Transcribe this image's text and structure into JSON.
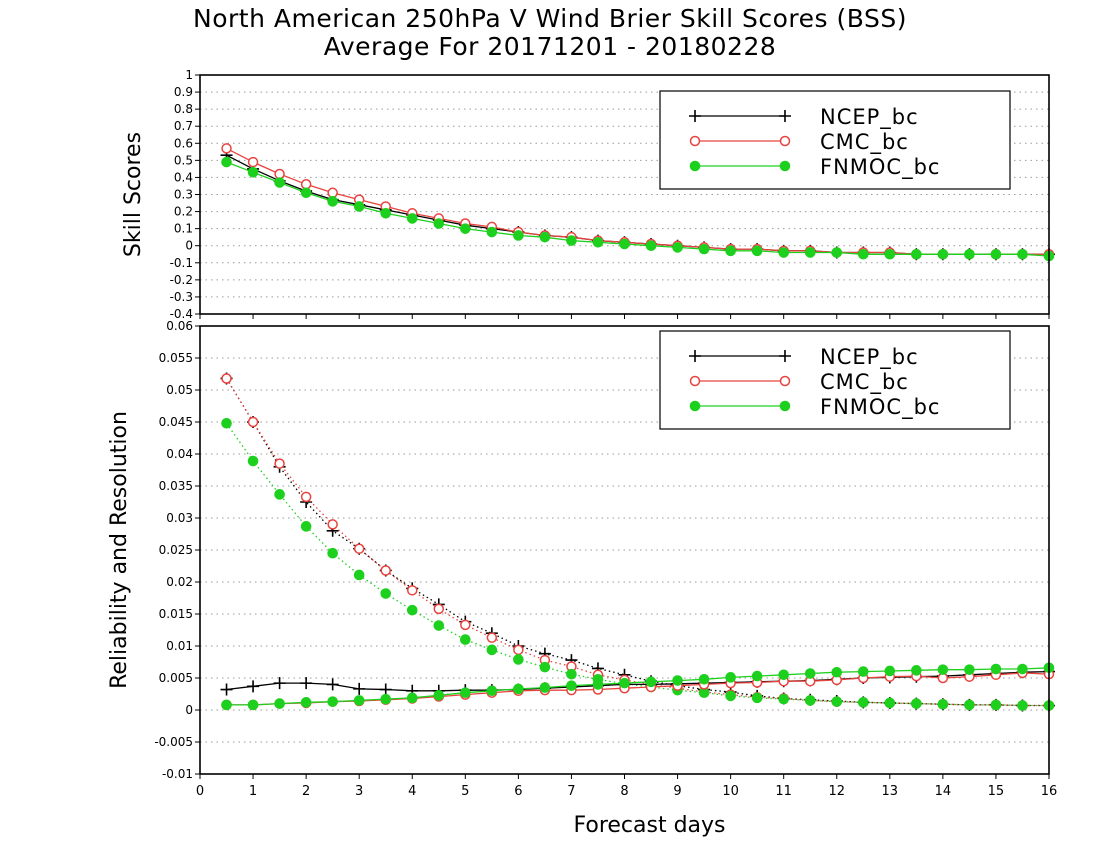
{
  "title": {
    "line1": "North American 250hPa V Wind Brier Skill Scores (BSS)",
    "line2": "Average For 20171201 - 20180228"
  },
  "colors": {
    "NCEP_bc": "#000000",
    "CMC_bc": "#e8433f",
    "FNMOC_bc": "#1ed01e"
  },
  "chart_data": [
    {
      "type": "line",
      "ylabel": "Skill Scores",
      "xlabel": "",
      "xlim": [
        0,
        16
      ],
      "ylim": [
        -0.4,
        1
      ],
      "grid": true,
      "legend_position": "top-right",
      "x_ticks": [],
      "y_ticks": [
        "-0.4",
        "-0.3",
        "-0.2",
        "-0.1",
        "0",
        "0.1",
        "0.2",
        "0.3",
        "0.4",
        "0.5",
        "0.6",
        "0.7",
        "0.8",
        "0.9",
        "1"
      ],
      "x": [
        0.5,
        1,
        1.5,
        2,
        2.5,
        3,
        3.5,
        4,
        4.5,
        5,
        5.5,
        6,
        6.5,
        7,
        7.5,
        8,
        8.5,
        9,
        9.5,
        10,
        10.5,
        11,
        11.5,
        12,
        12.5,
        13,
        13.5,
        14,
        14.5,
        15,
        15.5,
        16
      ],
      "series": [
        {
          "name": "NCEP_bc",
          "marker": "plus",
          "line": "solid",
          "values": [
            0.53,
            0.45,
            0.38,
            0.32,
            0.27,
            0.24,
            0.21,
            0.18,
            0.15,
            0.12,
            0.1,
            0.08,
            0.06,
            0.05,
            0.03,
            0.02,
            0.01,
            0.0,
            -0.01,
            -0.02,
            -0.02,
            -0.03,
            -0.03,
            -0.04,
            -0.04,
            -0.04,
            -0.05,
            -0.05,
            -0.05,
            -0.05,
            -0.05,
            -0.05
          ]
        },
        {
          "name": "CMC_bc",
          "marker": "open-circle",
          "line": "solid",
          "values": [
            0.57,
            0.49,
            0.42,
            0.36,
            0.31,
            0.27,
            0.23,
            0.19,
            0.16,
            0.13,
            0.11,
            0.08,
            0.06,
            0.05,
            0.03,
            0.02,
            0.01,
            0.0,
            -0.01,
            -0.02,
            -0.02,
            -0.03,
            -0.03,
            -0.04,
            -0.04,
            -0.04,
            -0.05,
            -0.05,
            -0.05,
            -0.05,
            -0.05,
            -0.05
          ]
        },
        {
          "name": "FNMOC_bc",
          "marker": "filled-circle",
          "line": "solid",
          "values": [
            0.49,
            0.43,
            0.37,
            0.31,
            0.26,
            0.23,
            0.19,
            0.16,
            0.13,
            0.1,
            0.08,
            0.06,
            0.05,
            0.03,
            0.02,
            0.01,
            0.0,
            -0.01,
            -0.02,
            -0.03,
            -0.03,
            -0.04,
            -0.04,
            -0.04,
            -0.05,
            -0.05,
            -0.05,
            -0.05,
            -0.05,
            -0.05,
            -0.05,
            -0.06
          ]
        }
      ]
    },
    {
      "type": "line",
      "ylabel": "Reliability and Resolution",
      "xlabel": "Forecast days",
      "xlim": [
        0,
        16
      ],
      "ylim": [
        -0.01,
        0.06
      ],
      "grid": true,
      "legend_position": "top-right",
      "x_ticks": [
        "0",
        "1",
        "2",
        "3",
        "4",
        "5",
        "6",
        "7",
        "8",
        "9",
        "10",
        "11",
        "12",
        "13",
        "14",
        "15",
        "16"
      ],
      "y_ticks": [
        "-0.01",
        "-0.005",
        "0",
        "0.005",
        "0.01",
        "0.015",
        "0.02",
        "0.025",
        "0.03",
        "0.035",
        "0.04",
        "0.045",
        "0.05",
        "0.055",
        "0.06"
      ],
      "x": [
        0.5,
        1,
        1.5,
        2,
        2.5,
        3,
        3.5,
        4,
        4.5,
        5,
        5.5,
        6,
        6.5,
        7,
        7.5,
        8,
        8.5,
        9,
        9.5,
        10,
        10.5,
        11,
        11.5,
        12,
        12.5,
        13,
        13.5,
        14,
        14.5,
        15,
        15.5,
        16
      ],
      "series": [
        {
          "name": "NCEP_bc",
          "metric": "resolution",
          "marker": "plus",
          "line": "dotted",
          "values": [
            0.0518,
            0.045,
            0.038,
            0.0325,
            0.028,
            0.0252,
            0.0218,
            0.019,
            0.0165,
            0.0138,
            0.012,
            0.01,
            0.0088,
            0.0078,
            0.0065,
            0.0055,
            0.0045,
            0.0038,
            0.0032,
            0.0028,
            0.0022,
            0.0018,
            0.0016,
            0.0014,
            0.0012,
            0.0011,
            0.001,
            0.0009,
            0.0008,
            0.0008,
            0.0007,
            0.0007
          ]
        },
        {
          "name": "CMC_bc",
          "metric": "resolution",
          "marker": "open-circle",
          "line": "dotted",
          "values": [
            0.0518,
            0.045,
            0.0385,
            0.0333,
            0.029,
            0.0252,
            0.0218,
            0.0187,
            0.0158,
            0.0133,
            0.0113,
            0.0094,
            0.0078,
            0.0068,
            0.0055,
            0.0047,
            0.004,
            0.0034,
            0.0028,
            0.0024,
            0.002,
            0.0018,
            0.0015,
            0.0013,
            0.0012,
            0.0011,
            0.001,
            0.0009,
            0.0008,
            0.0008,
            0.0007,
            0.0007
          ]
        },
        {
          "name": "FNMOC_bc",
          "metric": "resolution",
          "marker": "filled-circle",
          "line": "dotted",
          "values": [
            0.0448,
            0.0389,
            0.0337,
            0.0287,
            0.0245,
            0.0211,
            0.0182,
            0.0156,
            0.0132,
            0.011,
            0.0094,
            0.0079,
            0.0067,
            0.0056,
            0.0048,
            0.0041,
            0.0036,
            0.0031,
            0.0027,
            0.0022,
            0.0019,
            0.0017,
            0.0015,
            0.0013,
            0.0012,
            0.0011,
            0.001,
            0.0009,
            0.0008,
            0.0008,
            0.0007,
            0.0007
          ]
        },
        {
          "name": "NCEP_bc",
          "metric": "reliability",
          "marker": "plus",
          "line": "solid",
          "values": [
            0.0032,
            0.0037,
            0.0042,
            0.0042,
            0.004,
            0.0033,
            0.0032,
            0.003,
            0.003,
            0.0031,
            0.0031,
            0.0032,
            0.0034,
            0.0036,
            0.0038,
            0.004,
            0.004,
            0.0041,
            0.0042,
            0.0043,
            0.0044,
            0.0045,
            0.0046,
            0.0048,
            0.005,
            0.0051,
            0.0052,
            0.0053,
            0.0055,
            0.0057,
            0.0059,
            0.006
          ]
        },
        {
          "name": "CMC_bc",
          "metric": "reliability",
          "marker": "open-circle",
          "line": "solid",
          "values": [
            0.0008,
            0.0008,
            0.001,
            0.0011,
            0.0013,
            0.0014,
            0.0016,
            0.0018,
            0.0021,
            0.0024,
            0.0027,
            0.003,
            0.0031,
            0.0031,
            0.0032,
            0.0034,
            0.0036,
            0.0038,
            0.004,
            0.0042,
            0.0043,
            0.0045,
            0.0045,
            0.0047,
            0.005,
            0.0052,
            0.0053,
            0.005,
            0.0052,
            0.0055,
            0.0058,
            0.0056
          ]
        },
        {
          "name": "FNMOC_bc",
          "metric": "reliability",
          "marker": "filled-circle",
          "line": "solid",
          "values": [
            0.0008,
            0.0008,
            0.001,
            0.0012,
            0.0013,
            0.0015,
            0.0017,
            0.0019,
            0.0023,
            0.0027,
            0.003,
            0.0033,
            0.0035,
            0.0038,
            0.004,
            0.0042,
            0.0044,
            0.0046,
            0.0048,
            0.0051,
            0.0053,
            0.0055,
            0.0057,
            0.0059,
            0.006,
            0.0061,
            0.0062,
            0.0063,
            0.0063,
            0.0064,
            0.0064,
            0.0066
          ]
        }
      ]
    }
  ]
}
